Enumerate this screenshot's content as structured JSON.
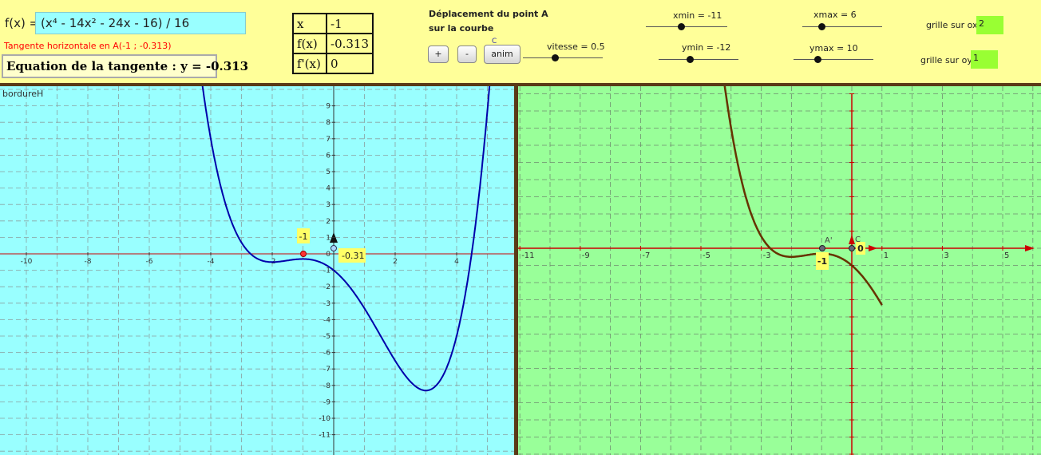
{
  "function": {
    "label": "f(x) =",
    "expression": "(x⁴ - 14x² - 24x - 16) / 16"
  },
  "tangent": {
    "info": "Tangente horizontale en A(-1 ; -0.313)",
    "equation": "Equation de la tangente :  y = -0.313"
  },
  "table": {
    "rows": [
      {
        "label": "x",
        "value": "-1"
      },
      {
        "label": "f(x)",
        "value": "-0.313"
      },
      {
        "label": "f'(x)",
        "value": "0"
      }
    ]
  },
  "controls": {
    "title_line1": "Déplacement du point A",
    "title_line2": "sur la courbe",
    "plus": "+",
    "minus": "-",
    "anim": "anim",
    "anim_marker": "C",
    "vitesse": "vitesse = 0.5",
    "xmin": "xmin = -11",
    "xmax": "xmax = 6",
    "ymin": "ymin = -12",
    "ymax": "ymax = 10",
    "grille_ox_label": "grille sur ox",
    "grille_ox_value": "2",
    "grille_oy_label": "grille sur oy",
    "grille_oy_value": "1"
  },
  "left_graph": {
    "caption": "bordureH",
    "point_label": "-1",
    "value_label": "-0.31",
    "x_ticks": [
      "-10",
      "-8",
      "-6",
      "-4",
      "-2",
      "2",
      "4"
    ],
    "y_ticks": [
      "9",
      "8",
      "7",
      "6",
      "5",
      "4",
      "3",
      "2",
      "1",
      "0",
      "-1",
      "-2",
      "-3",
      "-4",
      "-5",
      "-6",
      "-7",
      "-8",
      "-9",
      "-10",
      "-11"
    ],
    "background": "#99ffff",
    "curve_color": "#0000aa"
  },
  "right_graph": {
    "x_ticks": [
      "-11",
      "-9",
      "-7",
      "-5",
      "-3",
      "1",
      "3",
      "5"
    ],
    "point_name": "A'",
    "origin_name": "C",
    "origin_value": "0",
    "point_value": "-1",
    "background": "#99ff99",
    "curve_color": "#663300"
  },
  "chart_data": {
    "type": "line",
    "title": "",
    "series": [
      {
        "name": "f",
        "expression": "(x^4 - 14x^2 - 24x - 16)/16"
      }
    ],
    "xlim": [
      -11,
      6
    ],
    "ylim": [
      -12,
      10
    ],
    "point": {
      "x": -1,
      "y": -0.313
    }
  }
}
